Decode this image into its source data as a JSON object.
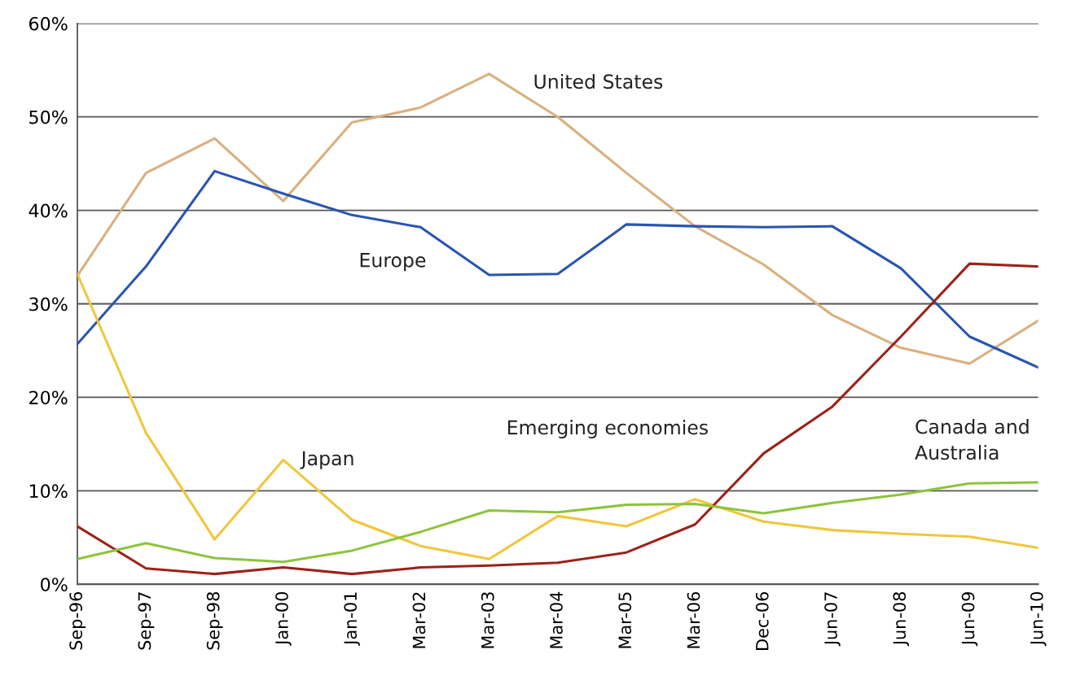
{
  "chart_data": {
    "type": "line",
    "categories": [
      "Sep-96",
      "Sep-97",
      "Sep-98",
      "Jan-00",
      "Jan-01",
      "Mar-02",
      "Mar-03",
      "Mar-04",
      "Mar-05",
      "Mar-06",
      "Dec-06",
      "Jun-07",
      "Jun-08",
      "Jun-09",
      "Jun-10"
    ],
    "series": [
      {
        "name": "United States",
        "color": "#d9b07e",
        "values": [
          33,
          44,
          47.7,
          41,
          49.4,
          51,
          54.6,
          50,
          44,
          38.3,
          34.2,
          28.8,
          25.3,
          23.6,
          28.2
        ]
      },
      {
        "name": "Europe",
        "color": "#2a55b0",
        "values": [
          25.7,
          34,
          44.2,
          41.8,
          39.5,
          38.2,
          33.1,
          33.2,
          38.5,
          38.3,
          38.2,
          38.3,
          33.8,
          26.5,
          23.2
        ]
      },
      {
        "name": "Japan",
        "color": "#f0c63c",
        "values": [
          33.2,
          16.2,
          4.8,
          13.3,
          6.9,
          4.1,
          2.7,
          7.3,
          6.2,
          9.1,
          6.7,
          5.8,
          5.4,
          5.1,
          3.9
        ]
      },
      {
        "name": "Emerging economies",
        "color": "#9b2218",
        "values": [
          6.2,
          1.7,
          1.1,
          1.8,
          1.1,
          1.8,
          2.0,
          2.3,
          3.4,
          6.4,
          14,
          19,
          26.5,
          34.3,
          34.0
        ]
      },
      {
        "name": "Canada and\nAustralia",
        "color": "#8cc43c",
        "values": [
          2.7,
          4.4,
          2.8,
          2.4,
          3.6,
          5.6,
          7.9,
          7.7,
          8.5,
          8.6,
          7.6,
          8.7,
          9.6,
          10.8,
          10.9
        ]
      }
    ],
    "ylim": [
      0,
      60
    ],
    "yticks": [
      {
        "value": 0,
        "label": "0%"
      },
      {
        "value": 10,
        "label": "10%"
      },
      {
        "value": 20,
        "label": "20%"
      },
      {
        "value": 30,
        "label": "30%"
      },
      {
        "value": 40,
        "label": "40%"
      },
      {
        "value": 50,
        "label": "50%"
      },
      {
        "value": 60,
        "label": "60%"
      }
    ],
    "grid": "y",
    "legend": false,
    "marker": "none",
    "line_style": "solid"
  }
}
